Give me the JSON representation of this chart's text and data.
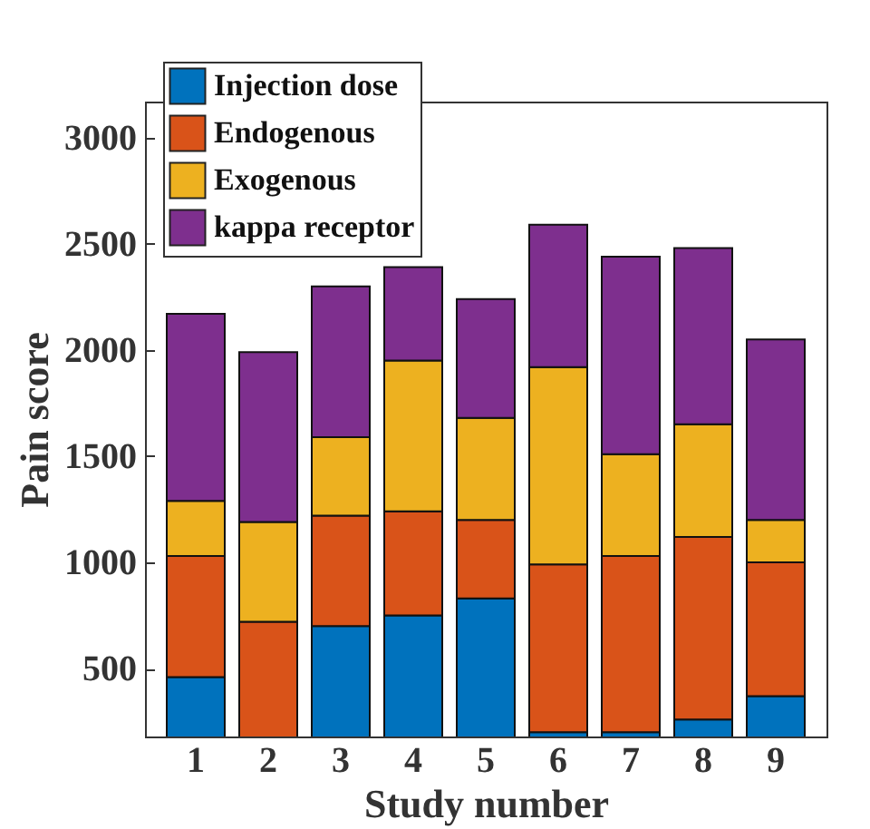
{
  "chart_data": {
    "type": "bar",
    "stacked": true,
    "xlabel": "Study number",
    "ylabel": "Pain score",
    "categories": [
      "1",
      "2",
      "3",
      "4",
      "5",
      "6",
      "7",
      "8",
      "9"
    ],
    "ylim": [
      180,
      3170
    ],
    "yticks": [
      500,
      1000,
      1500,
      2000,
      2500,
      3000
    ],
    "grid": false,
    "legend": "top left",
    "series": [
      {
        "name": "Injection dose",
        "color": "#0072bd",
        "values": [
          460,
          null,
          700,
          750,
          830,
          200,
          200,
          260,
          370
        ]
      },
      {
        "name": "Endogenous",
        "color": "#d95319",
        "values": [
          570,
          720,
          520,
          490,
          370,
          790,
          830,
          860,
          630
        ]
      },
      {
        "name": "Exogenous",
        "color": "#edb120",
        "values": [
          260,
          470,
          370,
          710,
          480,
          930,
          480,
          530,
          200
        ]
      },
      {
        "name": "kappa receptor",
        "color": "#7e2f8e",
        "values": [
          880,
          800,
          710,
          440,
          560,
          670,
          930,
          830,
          850
        ]
      }
    ]
  }
}
